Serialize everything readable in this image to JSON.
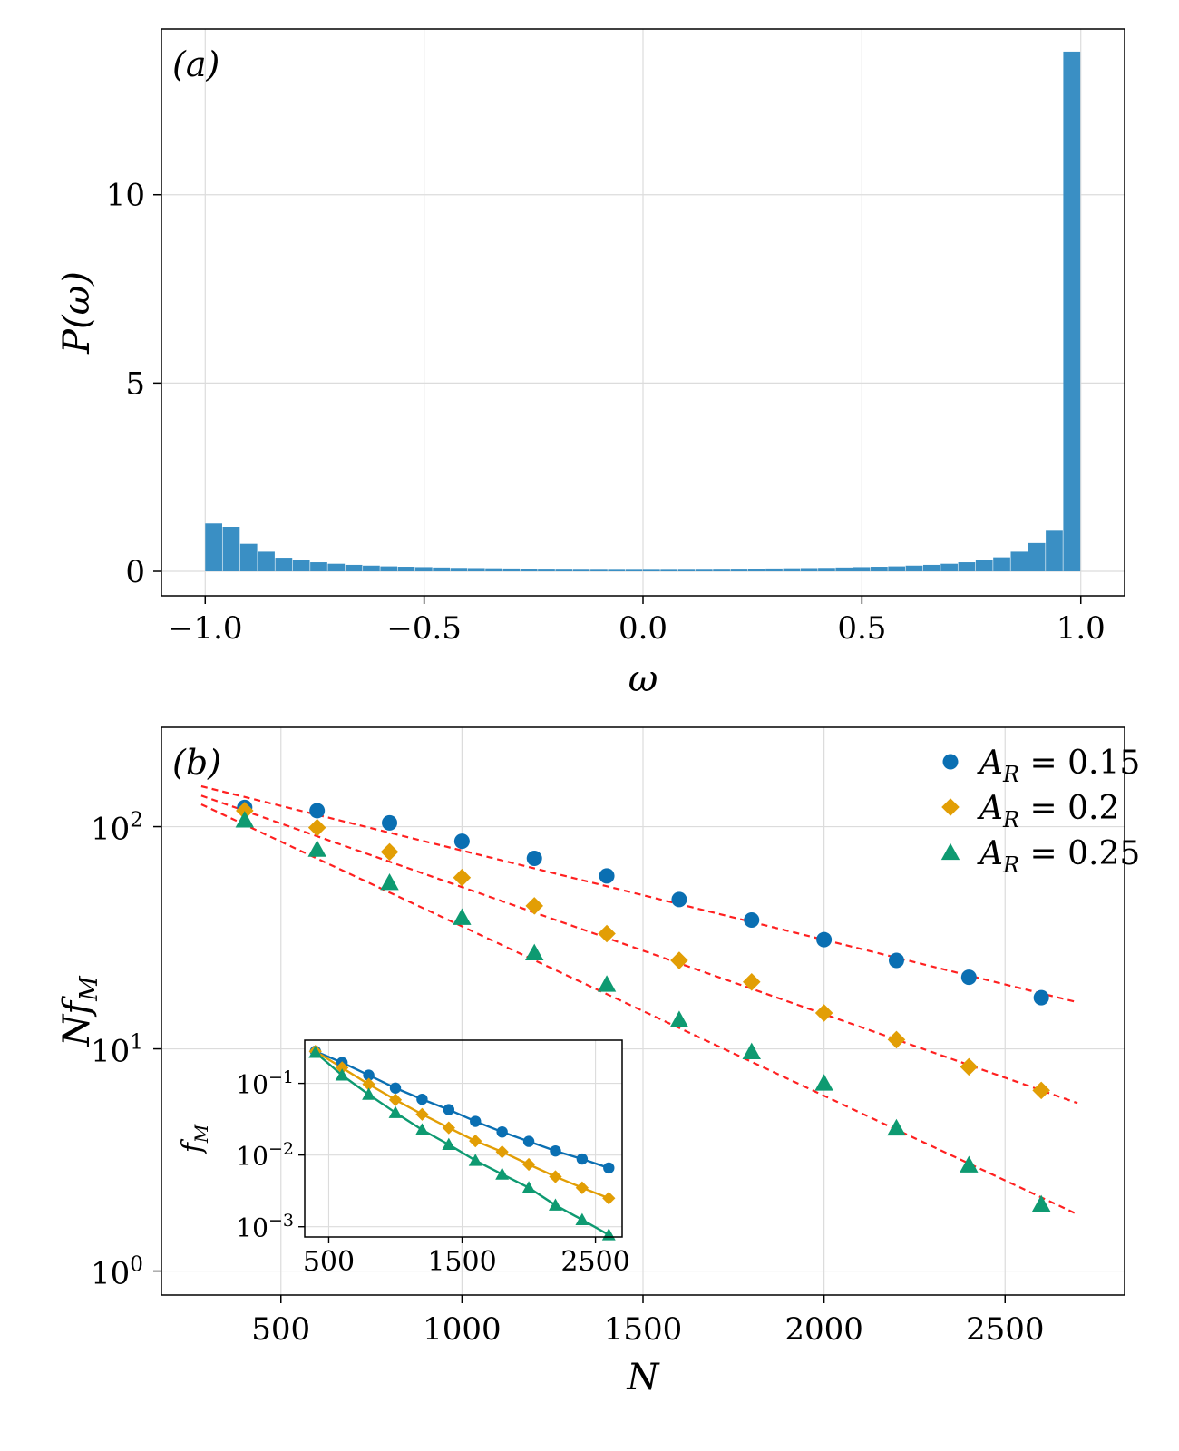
{
  "chart_data": [
    {
      "type": "bar",
      "panel_label": "(a)",
      "xlabel": "ω",
      "ylabel": "P(ω)",
      "xlim": [
        -1.1,
        1.1
      ],
      "ylim": [
        -0.65,
        14.4
      ],
      "xticks": [
        -1.0,
        -0.5,
        0.0,
        0.5,
        1.0
      ],
      "xtick_labels": [
        "−1.0",
        "−0.5",
        "0.0",
        "0.5",
        "1.0"
      ],
      "yticks": [
        0,
        5,
        10
      ],
      "ytick_labels": [
        "0",
        "5",
        "10"
      ],
      "bin_start": -1.0,
      "bin_width": 0.04,
      "values": [
        1.27,
        1.18,
        0.73,
        0.52,
        0.36,
        0.29,
        0.24,
        0.2,
        0.17,
        0.15,
        0.13,
        0.12,
        0.11,
        0.1,
        0.09,
        0.085,
        0.08,
        0.075,
        0.072,
        0.07,
        0.068,
        0.066,
        0.065,
        0.064,
        0.064,
        0.064,
        0.064,
        0.065,
        0.066,
        0.068,
        0.07,
        0.072,
        0.075,
        0.08,
        0.085,
        0.09,
        0.1,
        0.11,
        0.12,
        0.13,
        0.15,
        0.17,
        0.2,
        0.24,
        0.29,
        0.37,
        0.52,
        0.75,
        1.1,
        13.8
      ],
      "color": "#3a8fc4",
      "grid": true
    },
    {
      "type": "scatter",
      "panel_label": "(b)",
      "xlabel": "N",
      "ylabel": "Nf",
      "ylabel_sub": "M",
      "yscale": "log",
      "xlim": [
        170,
        2830
      ],
      "ylim": [
        0.78,
        280
      ],
      "xticks": [
        500,
        1000,
        1500,
        2000,
        2500
      ],
      "xtick_labels": [
        "500",
        "1000",
        "1500",
        "2000",
        "2500"
      ],
      "yticks": [
        1,
        10,
        100
      ],
      "ytick_labels": [
        {
          "base": "10",
          "exp": "0"
        },
        {
          "base": "10",
          "exp": "1"
        },
        {
          "base": "10",
          "exp": "2"
        }
      ],
      "x": [
        400,
        600,
        800,
        1000,
        1200,
        1400,
        1600,
        1800,
        2000,
        2200,
        2400,
        2600
      ],
      "legend_position": "top-right",
      "fit_color": "#ff2020",
      "series": [
        {
          "name": "A_R=0.15",
          "label_main": "A",
          "label_sub": "R",
          "label_rest": " = 0.15",
          "marker": "circle",
          "color": "#0a6fb2",
          "values": [
            122,
            118,
            104,
            86,
            72,
            60,
            47,
            38,
            31,
            25,
            21,
            17
          ],
          "fit": {
            "x0": 280,
            "y0": 152,
            "x1": 2700,
            "y1": 16.2
          }
        },
        {
          "name": "A_R=0.2",
          "label_main": "A",
          "label_sub": "R",
          "label_rest": " = 0.2",
          "marker": "diamond",
          "color": "#e29e05",
          "values": [
            118,
            99,
            77,
            59,
            44,
            33,
            25,
            20,
            14.5,
            11,
            8.3,
            6.5
          ],
          "fit": {
            "x0": 280,
            "y0": 138,
            "x1": 2700,
            "y1": 5.7
          }
        },
        {
          "name": "A_R=0.25",
          "label_main": "A",
          "label_sub": "R",
          "label_rest": " = 0.25",
          "marker": "triangle",
          "color": "#0e9a71",
          "values": [
            107,
            79,
            56,
            39,
            27,
            19.5,
            13.5,
            9.7,
            7.0,
            4.4,
            3.0,
            2.0
          ],
          "fit": {
            "x0": 280,
            "y0": 126,
            "x1": 2700,
            "y1": 1.8
          }
        }
      ],
      "grid": true
    },
    {
      "type": "line",
      "role": "inset",
      "ylabel": "f",
      "ylabel_sub": "M",
      "yscale": "log",
      "xlim": [
        320,
        2700
      ],
      "ylim": [
        0.00072,
        0.4
      ],
      "xticks": [
        500,
        1500,
        2500
      ],
      "xtick_labels": [
        "500",
        "1500",
        "2500"
      ],
      "yticks": [
        0.001,
        0.01,
        0.1
      ],
      "ytick_labels": [
        {
          "base": "10",
          "exp": "−3"
        },
        {
          "base": "10",
          "exp": "−2"
        },
        {
          "base": "10",
          "exp": "−1"
        }
      ],
      "x": [
        400,
        600,
        800,
        1000,
        1200,
        1400,
        1600,
        1800,
        2000,
        2200,
        2400,
        2600
      ],
      "series": [
        {
          "name": "A_R=0.15",
          "marker": "circle",
          "color": "#0a6fb2",
          "values": [
            0.28,
            0.195,
            0.13,
            0.086,
            0.06,
            0.043,
            0.0295,
            0.021,
            0.0155,
            0.0114,
            0.0088,
            0.0066
          ]
        },
        {
          "name": "A_R=0.2",
          "marker": "diamond",
          "color": "#e29e05",
          "values": [
            0.28,
            0.165,
            0.097,
            0.059,
            0.037,
            0.024,
            0.0157,
            0.0111,
            0.0074,
            0.005,
            0.0035,
            0.0025
          ]
        },
        {
          "name": "A_R=0.25",
          "marker": "triangle",
          "color": "#0e9a71",
          "values": [
            0.27,
            0.13,
            0.07,
            0.039,
            0.0225,
            0.014,
            0.0084,
            0.0054,
            0.0035,
            0.002,
            0.00125,
            0.00077
          ]
        }
      ],
      "grid": true
    }
  ]
}
